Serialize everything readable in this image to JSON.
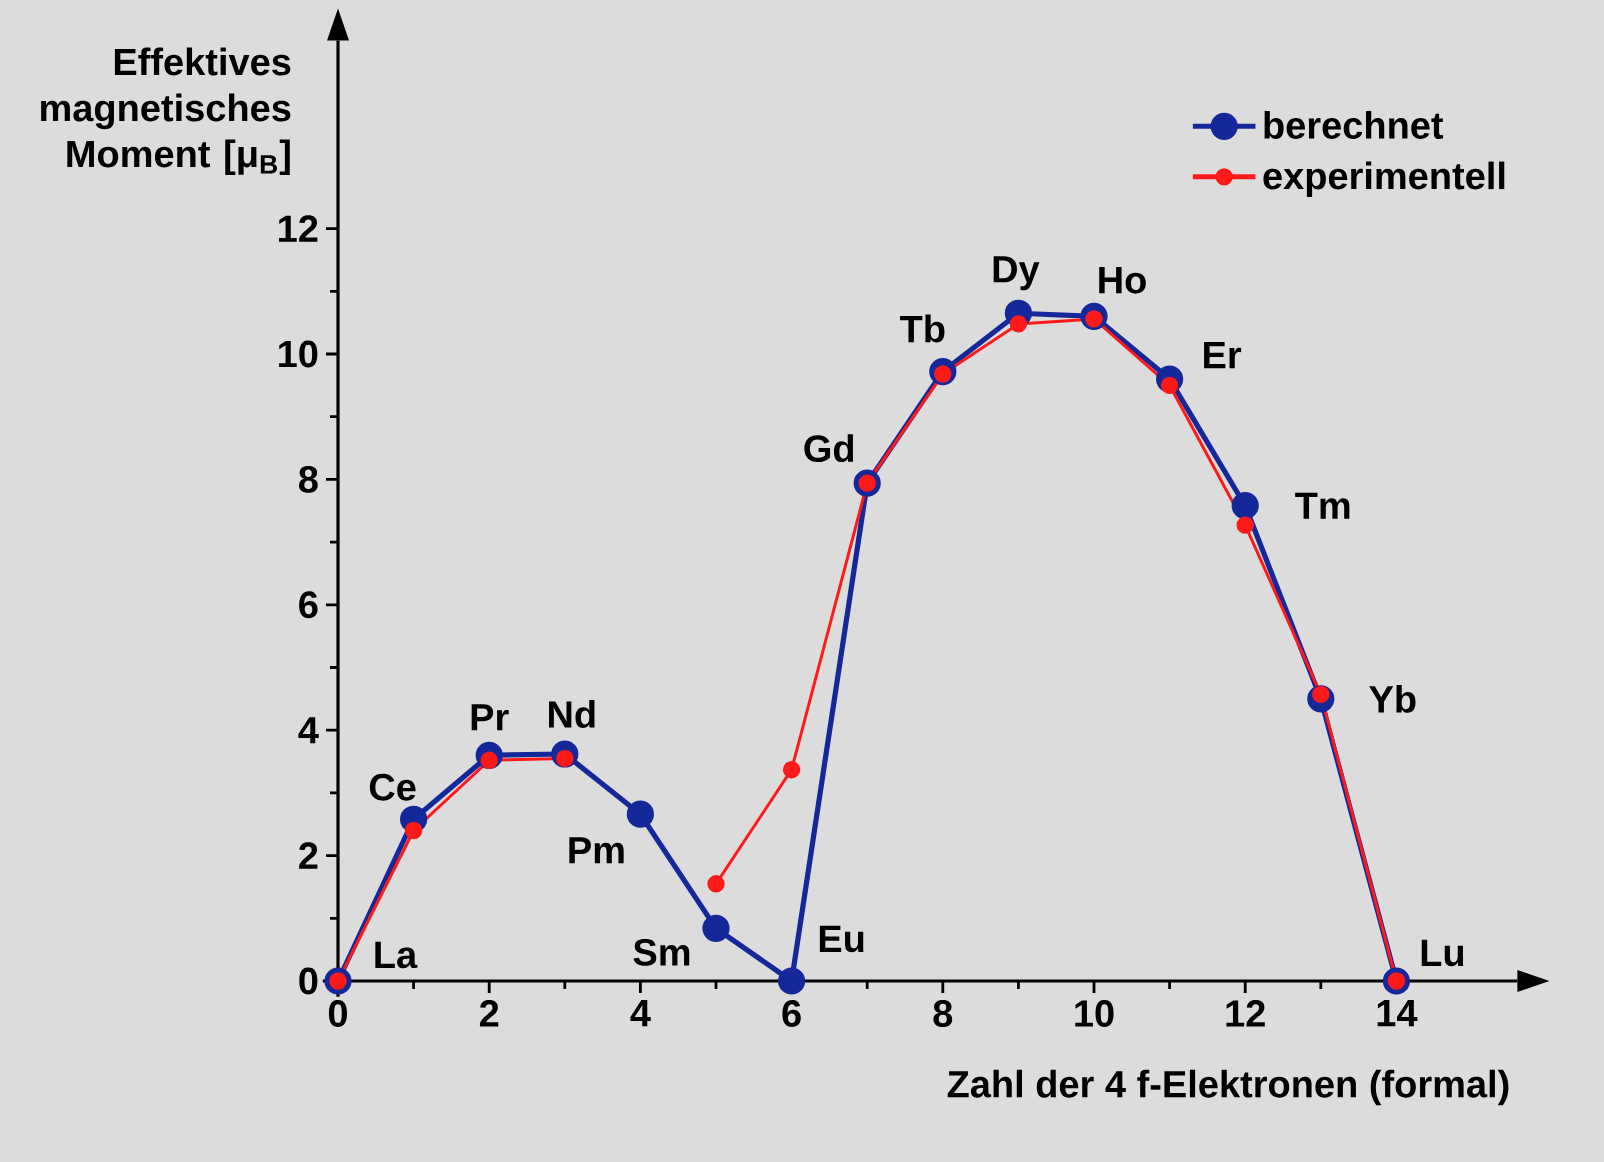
{
  "chart_data": {
    "type": "line",
    "xlabel": "Zahl der 4 f-Elektronen (formal)",
    "ylabel": "Effektives magnetisches Moment [μ$_{B}$]",
    "x": [
      0,
      1,
      2,
      3,
      4,
      5,
      6,
      7,
      8,
      9,
      10,
      11,
      12,
      13,
      14
    ],
    "series": [
      {
        "name": "berechnet",
        "color": "#14289a",
        "values": [
          0,
          2.58,
          3.6,
          3.62,
          2.66,
          0.84,
          0,
          7.94,
          9.72,
          10.65,
          10.6,
          9.6,
          7.58,
          4.5,
          0
        ]
      },
      {
        "name": "experimentell",
        "color": "#ff1a1a",
        "values": [
          0,
          2.4,
          3.52,
          3.55,
          null,
          1.55,
          3.37,
          7.94,
          9.68,
          10.48,
          10.56,
          9.5,
          7.27,
          4.57,
          0
        ]
      }
    ],
    "xlim": [
      -0.2,
      15.6
    ],
    "ylim": [
      -0.25,
      15
    ],
    "xticks": [
      0,
      {
        "value": 1,
        "label": null
      },
      2,
      {
        "value": 3,
        "label": null
      },
      4,
      {
        "value": 5,
        "label": null
      },
      6,
      {
        "value": 7,
        "label": null
      },
      8,
      {
        "value": 9,
        "label": null
      },
      10,
      {
        "value": 11,
        "label": null
      },
      12,
      {
        "value": 13,
        "label": null
      },
      14
    ],
    "yticks": [
      0,
      {
        "value": 1,
        "label": null
      },
      2,
      {
        "value": 3,
        "label": null
      },
      4,
      {
        "value": 5,
        "label": null
      },
      6,
      {
        "value": 7,
        "label": null
      },
      8,
      {
        "value": 9,
        "label": null
      },
      10,
      {
        "value": 11,
        "label": null
      },
      12
    ],
    "marker": "circle",
    "line_style": "solid",
    "legend": "top right",
    "annotations": [
      {
        "text": "La",
        "x": 0,
        "y": 0
      },
      {
        "text": "Ce",
        "x": 1,
        "y": 2.58
      },
      {
        "text": "Pr",
        "x": 2,
        "y": 3.6
      },
      {
        "text": "Nd",
        "x": 3,
        "y": 3.62
      },
      {
        "text": "Pm",
        "x": 4,
        "y": 2.66
      },
      {
        "text": "Sm",
        "x": 5,
        "y": 0.84
      },
      {
        "text": "Eu",
        "x": 6,
        "y": 0
      },
      {
        "text": "Gd",
        "x": 7,
        "y": 7.94
      },
      {
        "text": "Tb",
        "x": 8,
        "y": 9.72
      },
      {
        "text": "Dy",
        "x": 9,
        "y": 10.65
      },
      {
        "text": "Ho",
        "x": 10,
        "y": 10.6
      },
      {
        "text": "Er",
        "x": 11,
        "y": 9.6
      },
      {
        "text": "Tm",
        "x": 12,
        "y": 7.58
      },
      {
        "text": "Yb",
        "x": 13,
        "y": 4.5
      },
      {
        "text": "Lu",
        "x": 14,
        "y": 0
      }
    ]
  }
}
